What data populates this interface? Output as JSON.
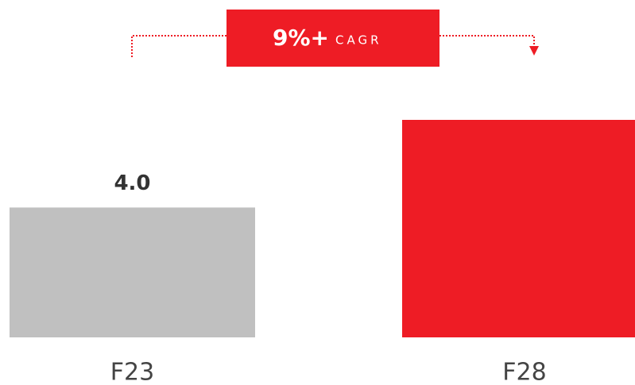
{
  "chart_data": {
    "type": "bar",
    "categories": [
      "F23",
      "F28"
    ],
    "values": [
      4.0,
      6.7
    ],
    "value_labels": [
      "4.0",
      null
    ],
    "colors": [
      "#c0c0c0",
      "#ee1c25"
    ],
    "annotation": {
      "value": "9%+",
      "label": "CAGR"
    }
  }
}
